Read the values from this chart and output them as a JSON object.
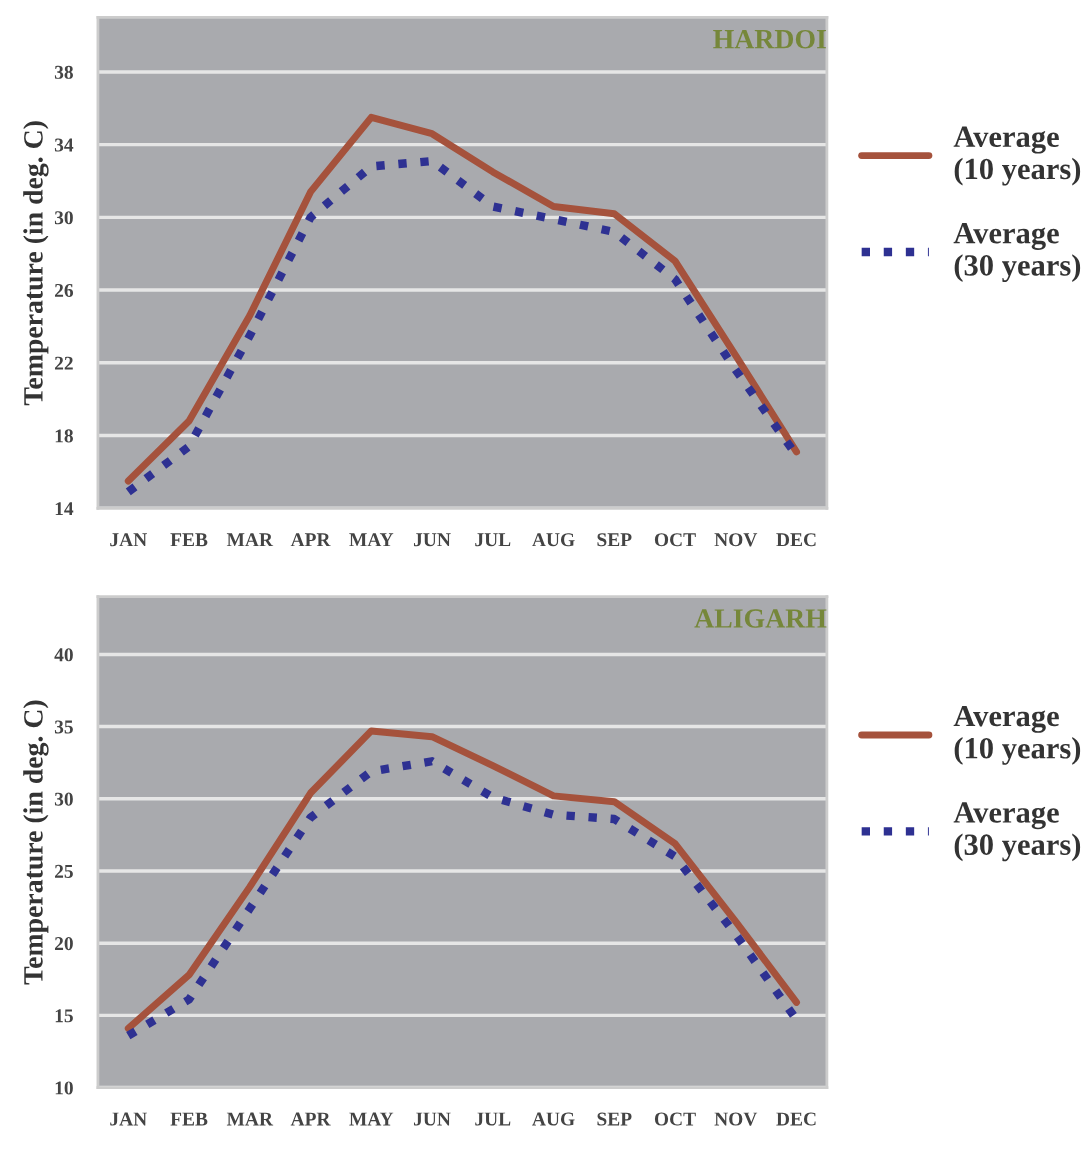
{
  "chart_data": [
    {
      "type": "line",
      "title": "HARDOI",
      "ylabel": "Temperature (in deg. C)",
      "categories": [
        "JAN",
        "FEB",
        "MAR",
        "APR",
        "MAY",
        "JUN",
        "JUL",
        "AUG",
        "SEP",
        "OCT",
        "NOV",
        "DEC"
      ],
      "ylim": [
        14,
        41
      ],
      "yticks": [
        14,
        18,
        22,
        26,
        30,
        34,
        38
      ],
      "grid": "y",
      "legend": "right",
      "marker": "none",
      "series": [
        {
          "name": "Average\n(10 years)",
          "color": "#a5523c",
          "line_style": "solid",
          "values": [
            15.5,
            18.8,
            24.6,
            31.4,
            35.5,
            34.6,
            32.5,
            30.6,
            30.2,
            27.6,
            22.4,
            17.1
          ]
        },
        {
          "name": "Average\n(30 years)",
          "color": "#2e3192",
          "line_style": "dotted",
          "values": [
            14.9,
            17.4,
            23.5,
            30.0,
            32.8,
            33.1,
            30.6,
            29.9,
            29.2,
            26.6,
            21.6,
            16.9
          ]
        }
      ]
    },
    {
      "type": "line",
      "title": "ALIGARH",
      "ylabel": "Temperature (in deg. C)",
      "categories": [
        "JAN",
        "FEB",
        "MAR",
        "APR",
        "MAY",
        "JUN",
        "JUL",
        "AUG",
        "SEP",
        "OCT",
        "NOV",
        "DEC"
      ],
      "ylim": [
        10,
        44
      ],
      "yticks": [
        10,
        15,
        20,
        25,
        30,
        35,
        40
      ],
      "grid": "y",
      "legend": "right",
      "marker": "none",
      "series": [
        {
          "name": "Average\n(10 years)",
          "color": "#a5523c",
          "line_style": "solid",
          "values": [
            14.1,
            17.8,
            23.9,
            30.4,
            34.7,
            34.3,
            32.3,
            30.2,
            29.8,
            26.9,
            21.5,
            15.9
          ]
        },
        {
          "name": "Average\n(30 years)",
          "color": "#2e3192",
          "line_style": "dotted",
          "values": [
            13.6,
            16.1,
            22.4,
            28.7,
            31.9,
            32.6,
            30.1,
            28.9,
            28.6,
            26.0,
            20.6,
            14.7
          ]
        }
      ]
    }
  ]
}
